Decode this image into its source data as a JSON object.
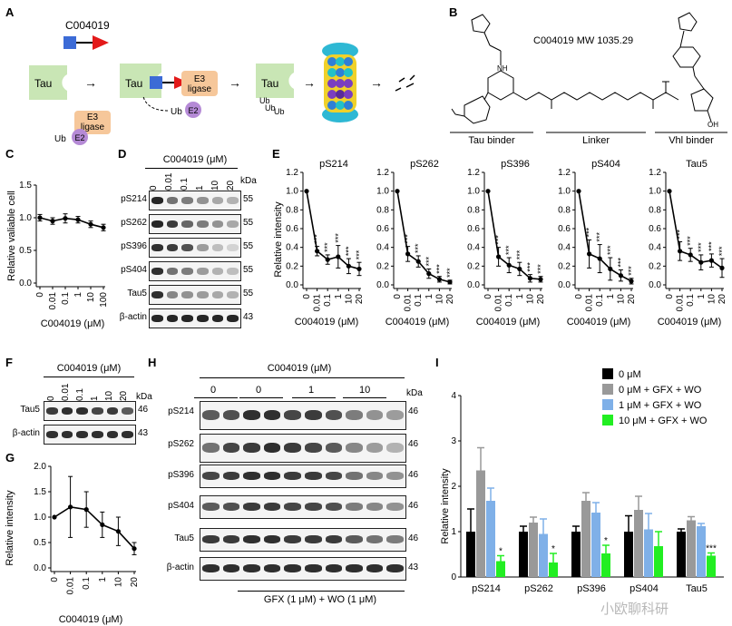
{
  "panels": {
    "A": "A",
    "B": "B",
    "C": "C",
    "D": "D",
    "E": "E",
    "F": "F",
    "G": "G",
    "H": "H",
    "I": "I"
  },
  "panelA": {
    "compound": "C004019",
    "tau": "Tau",
    "e3_line1": "E3",
    "e3_line2": "ligase",
    "ub": "Ub",
    "e2": "E2"
  },
  "panelB": {
    "title": "C004019  MW 1035.29",
    "segments": [
      "Tau binder",
      "Linker",
      "Vhl binder"
    ],
    "oh": "OH"
  },
  "panelC": {
    "ylabel": "Relative valiable cell",
    "xlabel": "C004019 (μM)",
    "xticks": [
      "0",
      "0.01",
      "0.1",
      "1",
      "10",
      "100"
    ],
    "yticks": [
      "0.0",
      "0.5",
      "1.0",
      "1.5"
    ]
  },
  "panelD": {
    "header": "C004019 (μM)",
    "concs": [
      "0",
      "0.01",
      "0.1",
      "1",
      "10",
      "20"
    ],
    "kda_label": "kDa",
    "rows": [
      {
        "name": "pS214",
        "kda": "55"
      },
      {
        "name": "pS262",
        "kda": "55"
      },
      {
        "name": "pS396",
        "kda": "55"
      },
      {
        "name": "pS404",
        "kda": "55"
      },
      {
        "name": "Tau5",
        "kda": "55"
      },
      {
        "name": "β-actin",
        "kda": "43"
      }
    ]
  },
  "panelE": {
    "ylabel": "Relative intensity",
    "xlabel": "C004019 (μM)",
    "xticks": [
      "0",
      "0.01",
      "0.1",
      "1",
      "10",
      "20"
    ],
    "yticks": [
      "0.0",
      "0.2",
      "0.4",
      "0.6",
      "0.8",
      "1.0",
      "1.2"
    ],
    "sig": "***"
  },
  "panelF": {
    "header": "C004019 (μM)",
    "concs": [
      "0",
      "0.01",
      "0.1",
      "1",
      "10",
      "20"
    ],
    "kda_label": "kDa",
    "rows": [
      {
        "name": "Tau5",
        "kda": "46"
      },
      {
        "name": "β-actin",
        "kda": "43"
      }
    ]
  },
  "panelG": {
    "ylabel": "Relative intensity",
    "xlabel": "C004019 (μM)",
    "xticks": [
      "0",
      "0.01",
      "0.1",
      "1",
      "10",
      "20"
    ],
    "yticks": [
      "0.0",
      "0.5",
      "1.0",
      "1.5",
      "2.0"
    ]
  },
  "panelH": {
    "header": "C004019 (μM)",
    "groups": [
      "0",
      "0",
      "1",
      "10"
    ],
    "kda_label": "kDa",
    "footer": "GFX (1 μM) + WO (1 μM)",
    "rows": [
      {
        "name": "pS214",
        "kda": "46"
      },
      {
        "name": "pS262",
        "kda": "46"
      },
      {
        "name": "pS396",
        "kda": "46"
      },
      {
        "name": "pS404",
        "kda": "46"
      },
      {
        "name": "Tau5",
        "kda": "46"
      },
      {
        "name": "β-actin",
        "kda": "43"
      }
    ]
  },
  "panelI": {
    "ylabel": "Relative intensity",
    "yticks": [
      "0",
      "1",
      "2",
      "3",
      "4"
    ],
    "categories": [
      "pS214",
      "pS262",
      "pS396",
      "pS404",
      "Tau5"
    ],
    "legend": [
      "0 μM",
      "0 μM + GFX + WO",
      "1 μM + GFX + WO",
      "10 μM + GFX + WO"
    ]
  },
  "watermark": "小欧聊科研",
  "chart_data": [
    {
      "type": "line",
      "title": "",
      "panel": "C",
      "xlabel": "C004019 (μM)",
      "ylabel": "Relative valiable cell",
      "categories": [
        "0",
        "0.01",
        "0.1",
        "1",
        "10",
        "100"
      ],
      "ylim": [
        0,
        1.5
      ],
      "series": [
        {
          "name": "viability",
          "values": [
            1.0,
            0.95,
            0.99,
            0.97,
            0.9,
            0.85
          ],
          "errors": [
            0.05,
            0.05,
            0.07,
            0.05,
            0.05,
            0.05
          ]
        }
      ]
    },
    {
      "type": "line",
      "panel": "E",
      "xlabel": "C004019 (μM)",
      "ylabel": "Relative intensity",
      "categories": [
        "0",
        "0.01",
        "0.1",
        "1",
        "10",
        "20"
      ],
      "ylim": [
        0,
        1.2
      ],
      "subplots": [
        {
          "title": "pS214",
          "values": [
            1.0,
            0.36,
            0.27,
            0.3,
            0.2,
            0.17
          ],
          "errors": [
            0,
            0.05,
            0.05,
            0.12,
            0.08,
            0.07
          ]
        },
        {
          "title": "pS262",
          "values": [
            1.0,
            0.33,
            0.25,
            0.12,
            0.06,
            0.03
          ],
          "errors": [
            0,
            0.08,
            0.06,
            0.05,
            0.03,
            0.02
          ]
        },
        {
          "title": "pS396",
          "values": [
            1.0,
            0.3,
            0.21,
            0.17,
            0.07,
            0.06
          ],
          "errors": [
            0,
            0.1,
            0.08,
            0.07,
            0.04,
            0.03
          ]
        },
        {
          "title": "pS404",
          "values": [
            1.0,
            0.33,
            0.28,
            0.17,
            0.1,
            0.04
          ],
          "errors": [
            0,
            0.15,
            0.15,
            0.12,
            0.06,
            0.03
          ]
        },
        {
          "title": "Tau5",
          "values": [
            1.0,
            0.36,
            0.32,
            0.24,
            0.26,
            0.18
          ],
          "errors": [
            0,
            0.1,
            0.07,
            0.08,
            0.07,
            0.1
          ]
        }
      ]
    },
    {
      "type": "line",
      "panel": "G",
      "xlabel": "C004019 (μM)",
      "ylabel": "Relative intensity",
      "categories": [
        "0",
        "0.01",
        "0.1",
        "1",
        "10",
        "20"
      ],
      "ylim": [
        0,
        2.0
      ],
      "series": [
        {
          "name": "Tau5",
          "values": [
            1.0,
            1.2,
            1.15,
            0.85,
            0.72,
            0.38
          ],
          "errors": [
            0,
            0.6,
            0.35,
            0.25,
            0.28,
            0.12
          ]
        }
      ]
    },
    {
      "type": "bar",
      "panel": "I",
      "ylabel": "Relative intensity",
      "categories": [
        "pS214",
        "pS262",
        "pS396",
        "pS404",
        "Tau5"
      ],
      "ylim": [
        0,
        4
      ],
      "series": [
        {
          "name": "0 μM",
          "color": "#000000",
          "values": [
            1.0,
            1.0,
            1.0,
            1.0,
            1.0
          ],
          "errors": [
            0.5,
            0.12,
            0.12,
            0.35,
            0.06
          ]
        },
        {
          "name": "0 μM + GFX + WO",
          "color": "#999999",
          "values": [
            2.35,
            1.2,
            1.68,
            1.48,
            1.25
          ],
          "errors": [
            0.5,
            0.12,
            0.18,
            0.3,
            0.08
          ]
        },
        {
          "name": "1 μM + GFX + WO",
          "color": "#7fb0e8",
          "values": [
            1.68,
            0.95,
            1.42,
            1.05,
            1.12
          ],
          "errors": [
            0.28,
            0.33,
            0.22,
            0.35,
            0.06
          ]
        },
        {
          "name": "10 μM + GFX + WO",
          "color": "#22ee22",
          "values": [
            0.35,
            0.32,
            0.52,
            0.68,
            0.47
          ],
          "errors": [
            0.12,
            0.2,
            0.18,
            0.32,
            0.06
          ]
        }
      ],
      "significance": [
        [
          "*"
        ],
        [
          "*"
        ],
        [
          "*"
        ],
        [
          ""
        ],
        [
          "***"
        ]
      ]
    }
  ]
}
